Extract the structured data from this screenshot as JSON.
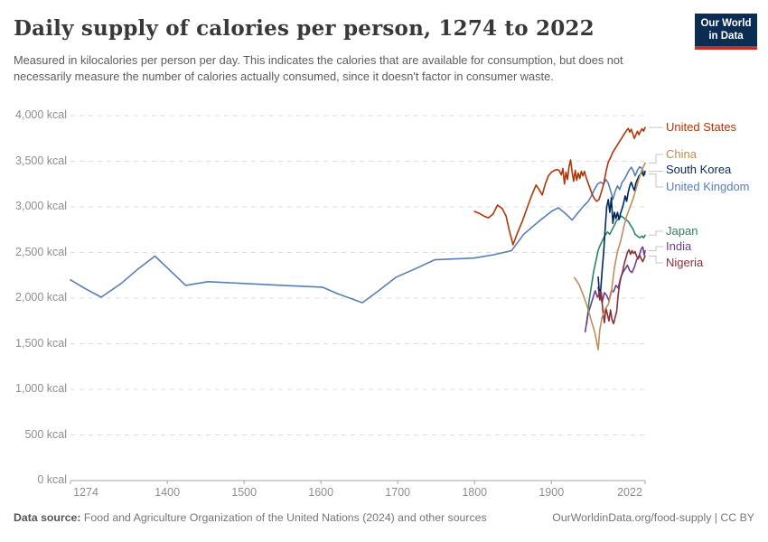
{
  "header": {
    "title": "Daily supply of calories per person, 1274 to 2022",
    "subtitle": "Measured in kilocalories per person per day. This indicates the calories that are available for consumption, but does not necessarily measure the number of calories actually consumed, since it doesn't factor in consumer waste.",
    "logo": {
      "line1": "Our World",
      "line2": "in Data"
    }
  },
  "footer": {
    "source_label": "Data source:",
    "source_text": " Food and Agriculture Organization of the United Nations (2024) and other sources",
    "credit": "OurWorldinData.org/food-supply | CC BY"
  },
  "style": {
    "axis_color": "#a5a5a5",
    "grid_color": "#dcdcdc",
    "connector_color": "#c4c4c4"
  },
  "chart_data": {
    "type": "line",
    "title": "Daily supply of calories per person, 1274 to 2022",
    "xlabel": "",
    "ylabel": "kcal",
    "xlim": [
      1274,
      2022
    ],
    "ylim": [
      0,
      4000
    ],
    "x_ticks": [
      1274,
      1400,
      1500,
      1600,
      1700,
      1800,
      1900,
      2022
    ],
    "y_ticks": [
      0,
      500,
      1000,
      1500,
      2000,
      2500,
      3000,
      3500,
      4000
    ],
    "y_tick_suffix": " kcal",
    "grid": "horizontal-dashed",
    "legend_position": "right-of-line-ends",
    "series": [
      {
        "name": "United Kingdom",
        "color": "#577eb4",
        "label_y": 207,
        "points": [
          [
            1274,
            2200
          ],
          [
            1292,
            2110
          ],
          [
            1314,
            2010
          ],
          [
            1340,
            2160
          ],
          [
            1362,
            2320
          ],
          [
            1384,
            2460
          ],
          [
            1404,
            2300
          ],
          [
            1424,
            2140
          ],
          [
            1453,
            2180
          ],
          [
            1500,
            2160
          ],
          [
            1550,
            2140
          ],
          [
            1602,
            2120
          ],
          [
            1621,
            2050
          ],
          [
            1654,
            1950
          ],
          [
            1675,
            2080
          ],
          [
            1698,
            2230
          ],
          [
            1725,
            2330
          ],
          [
            1748,
            2420
          ],
          [
            1775,
            2430
          ],
          [
            1800,
            2440
          ],
          [
            1825,
            2475
          ],
          [
            1848,
            2520
          ],
          [
            1864,
            2700
          ],
          [
            1885,
            2850
          ],
          [
            1900,
            2950
          ],
          [
            1909,
            2990
          ],
          [
            1918,
            2930
          ],
          [
            1927,
            2855
          ],
          [
            1935,
            2940
          ],
          [
            1942,
            3010
          ],
          [
            1948,
            3060
          ],
          [
            1952,
            3120
          ],
          [
            1956,
            3190
          ],
          [
            1960,
            3250
          ],
          [
            1964,
            3270
          ],
          [
            1968,
            3250
          ],
          [
            1971,
            3300
          ],
          [
            1974,
            3260
          ],
          [
            1978,
            3150
          ],
          [
            1980,
            3080
          ],
          [
            1983,
            3170
          ],
          [
            1986,
            3230
          ],
          [
            1989,
            3190
          ],
          [
            1992,
            3270
          ],
          [
            1995,
            3300
          ],
          [
            1998,
            3350
          ],
          [
            2001,
            3400
          ],
          [
            2004,
            3435
          ],
          [
            2007,
            3390
          ],
          [
            2009,
            3340
          ],
          [
            2012,
            3400
          ],
          [
            2015,
            3440
          ],
          [
            2018,
            3420
          ],
          [
            2020,
            3380
          ],
          [
            2022,
            3360
          ]
        ]
      },
      {
        "name": "Japan",
        "color": "#2c8465",
        "label_y": 256,
        "points": [
          [
            1946,
            1720
          ],
          [
            1949,
            1960
          ],
          [
            1952,
            2130
          ],
          [
            1955,
            2290
          ],
          [
            1958,
            2410
          ],
          [
            1961,
            2525
          ],
          [
            1964,
            2590
          ],
          [
            1967,
            2640
          ],
          [
            1970,
            2690
          ],
          [
            1973,
            2725
          ],
          [
            1976,
            2700
          ],
          [
            1979,
            2750
          ],
          [
            1982,
            2800
          ],
          [
            1985,
            2850
          ],
          [
            1988,
            2870
          ],
          [
            1991,
            2900
          ],
          [
            1994,
            2880
          ],
          [
            1997,
            2860
          ],
          [
            2000,
            2840
          ],
          [
            2003,
            2800
          ],
          [
            2006,
            2760
          ],
          [
            2009,
            2700
          ],
          [
            2012,
            2680
          ],
          [
            2015,
            2660
          ],
          [
            2018,
            2680
          ],
          [
            2020,
            2660
          ],
          [
            2022,
            2690
          ]
        ]
      },
      {
        "name": "India",
        "color": "#6d3e91",
        "label_y": 273,
        "points": [
          [
            1944,
            1630
          ],
          [
            1947,
            1800
          ],
          [
            1950,
            1890
          ],
          [
            1954,
            2000
          ],
          [
            1957,
            2080
          ],
          [
            1960,
            2010
          ],
          [
            1963,
            2060
          ],
          [
            1966,
            1950
          ],
          [
            1969,
            2060
          ],
          [
            1972,
            2030
          ],
          [
            1975,
            1970
          ],
          [
            1978,
            2080
          ],
          [
            1981,
            2070
          ],
          [
            1984,
            2140
          ],
          [
            1987,
            2110
          ],
          [
            1990,
            2220
          ],
          [
            1993,
            2280
          ],
          [
            1996,
            2320
          ],
          [
            1999,
            2360
          ],
          [
            2002,
            2300
          ],
          [
            2005,
            2280
          ],
          [
            2008,
            2340
          ],
          [
            2011,
            2420
          ],
          [
            2014,
            2460
          ],
          [
            2017,
            2540
          ],
          [
            2019,
            2560
          ],
          [
            2021,
            2470
          ],
          [
            2022,
            2520
          ]
        ]
      },
      {
        "name": "Nigeria",
        "color": "#883039",
        "label_y": 291,
        "points": [
          [
            1961,
            2120
          ],
          [
            1963,
            1980
          ],
          [
            1965,
            2060
          ],
          [
            1967,
            1860
          ],
          [
            1969,
            1730
          ],
          [
            1971,
            1890
          ],
          [
            1973,
            1820
          ],
          [
            1975,
            1750
          ],
          [
            1977,
            1870
          ],
          [
            1979,
            1760
          ],
          [
            1981,
            1720
          ],
          [
            1983,
            1790
          ],
          [
            1985,
            1850
          ],
          [
            1987,
            2040
          ],
          [
            1989,
            2160
          ],
          [
            1991,
            2240
          ],
          [
            1993,
            2300
          ],
          [
            1995,
            2380
          ],
          [
            1997,
            2440
          ],
          [
            1999,
            2500
          ],
          [
            2001,
            2530
          ],
          [
            2003,
            2480
          ],
          [
            2005,
            2520
          ],
          [
            2007,
            2490
          ],
          [
            2009,
            2510
          ],
          [
            2011,
            2460
          ],
          [
            2013,
            2430
          ],
          [
            2015,
            2470
          ],
          [
            2017,
            2430
          ],
          [
            2019,
            2400
          ],
          [
            2021,
            2440
          ],
          [
            2022,
            2460
          ]
        ]
      },
      {
        "name": "United States",
        "color": "#b13507",
        "label_y": 141,
        "points": [
          [
            1800,
            2950
          ],
          [
            1806,
            2930
          ],
          [
            1812,
            2900
          ],
          [
            1818,
            2880
          ],
          [
            1824,
            2920
          ],
          [
            1830,
            3020
          ],
          [
            1836,
            2980
          ],
          [
            1841,
            2900
          ],
          [
            1845,
            2750
          ],
          [
            1850,
            2585
          ],
          [
            1856,
            2720
          ],
          [
            1862,
            2840
          ],
          [
            1868,
            2980
          ],
          [
            1874,
            3120
          ],
          [
            1880,
            3240
          ],
          [
            1884,
            3190
          ],
          [
            1888,
            3130
          ],
          [
            1892,
            3250
          ],
          [
            1896,
            3340
          ],
          [
            1900,
            3380
          ],
          [
            1904,
            3400
          ],
          [
            1907,
            3410
          ],
          [
            1910,
            3400
          ],
          [
            1913,
            3350
          ],
          [
            1915,
            3420
          ],
          [
            1917,
            3250
          ],
          [
            1919,
            3380
          ],
          [
            1921,
            3300
          ],
          [
            1923,
            3440
          ],
          [
            1925,
            3515
          ],
          [
            1927,
            3380
          ],
          [
            1929,
            3280
          ],
          [
            1931,
            3400
          ],
          [
            1933,
            3290
          ],
          [
            1935,
            3370
          ],
          [
            1937,
            3310
          ],
          [
            1939,
            3390
          ],
          [
            1941,
            3340
          ],
          [
            1943,
            3390
          ],
          [
            1945,
            3330
          ],
          [
            1947,
            3280
          ],
          [
            1950,
            3210
          ],
          [
            1953,
            3140
          ],
          [
            1956,
            3090
          ],
          [
            1959,
            3060
          ],
          [
            1962,
            3080
          ],
          [
            1965,
            3160
          ],
          [
            1968,
            3250
          ],
          [
            1971,
            3380
          ],
          [
            1974,
            3490
          ],
          [
            1977,
            3540
          ],
          [
            1980,
            3600
          ],
          [
            1983,
            3640
          ],
          [
            1986,
            3680
          ],
          [
            1989,
            3720
          ],
          [
            1992,
            3760
          ],
          [
            1995,
            3800
          ],
          [
            1998,
            3840
          ],
          [
            2000,
            3860
          ],
          [
            2002,
            3820
          ],
          [
            2004,
            3850
          ],
          [
            2006,
            3800
          ],
          [
            2008,
            3750
          ],
          [
            2010,
            3790
          ],
          [
            2012,
            3830
          ],
          [
            2014,
            3790
          ],
          [
            2016,
            3830
          ],
          [
            2018,
            3855
          ],
          [
            2020,
            3830
          ],
          [
            2022,
            3870
          ]
        ]
      },
      {
        "name": "South Korea",
        "color": "#00295b",
        "label_y": 188,
        "points": [
          [
            1961,
            2230
          ],
          [
            1962,
            2100
          ],
          [
            1964,
            2070
          ],
          [
            1966,
            2300
          ],
          [
            1968,
            2500
          ],
          [
            1970,
            2760
          ],
          [
            1972,
            3000
          ],
          [
            1974,
            3080
          ],
          [
            1976,
            2940
          ],
          [
            1978,
            3100
          ],
          [
            1980,
            2820
          ],
          [
            1982,
            2940
          ],
          [
            1984,
            2870
          ],
          [
            1986,
            2940
          ],
          [
            1988,
            2860
          ],
          [
            1990,
            2930
          ],
          [
            1992,
            2980
          ],
          [
            1994,
            3040
          ],
          [
            1996,
            3120
          ],
          [
            1998,
            3060
          ],
          [
            2000,
            3160
          ],
          [
            2002,
            3230
          ],
          [
            2004,
            3270
          ],
          [
            2006,
            3220
          ],
          [
            2008,
            3180
          ],
          [
            2010,
            3260
          ],
          [
            2012,
            3300
          ],
          [
            2014,
            3340
          ],
          [
            2016,
            3360
          ],
          [
            2018,
            3380
          ],
          [
            2020,
            3340
          ],
          [
            2022,
            3390
          ]
        ]
      },
      {
        "name": "China",
        "color": "#bc8e5a",
        "label_y": 171,
        "points": [
          [
            1930,
            2225
          ],
          [
            1936,
            2150
          ],
          [
            1942,
            2020
          ],
          [
            1947,
            1900
          ],
          [
            1952,
            1750
          ],
          [
            1956,
            1640
          ],
          [
            1959,
            1520
          ],
          [
            1961,
            1435
          ],
          [
            1963,
            1650
          ],
          [
            1966,
            1790
          ],
          [
            1970,
            1880
          ],
          [
            1974,
            1930
          ],
          [
            1978,
            2060
          ],
          [
            1982,
            2330
          ],
          [
            1986,
            2510
          ],
          [
            1990,
            2620
          ],
          [
            1994,
            2770
          ],
          [
            1998,
            2900
          ],
          [
            2002,
            2990
          ],
          [
            2006,
            3080
          ],
          [
            2010,
            3190
          ],
          [
            2014,
            3310
          ],
          [
            2018,
            3410
          ],
          [
            2022,
            3480
          ]
        ]
      }
    ],
    "legend_order": [
      "United States",
      "China",
      "South Korea",
      "United Kingdom",
      "Japan",
      "India",
      "Nigeria"
    ]
  }
}
